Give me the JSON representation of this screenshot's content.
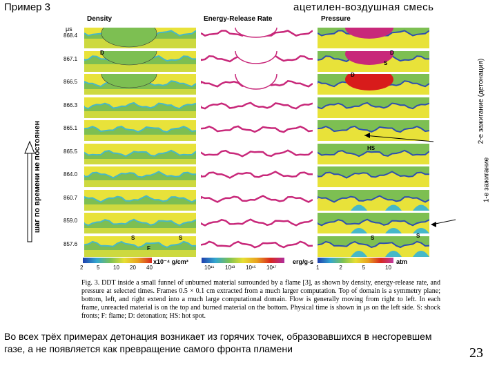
{
  "title_left": "Пример 3",
  "title_right": "ацетилен-воздушная смесь",
  "panels": {
    "density": "Density",
    "energy": "Energy-Release Rate",
    "pressure": "Pressure"
  },
  "time_unit": "μs",
  "times": [
    "868.4",
    "867.1",
    "866.5",
    "866.3",
    "865.1",
    "865.5",
    "864.0",
    "860.7",
    "859.0",
    "857.6"
  ],
  "vertical_left": "шаг по времени не постоянен",
  "label_ignition1": "1-е зажигание",
  "label_ignition2": "2-е зажигание (детонация)",
  "marks": {
    "D": "D",
    "S": "S",
    "F": "F",
    "HS": "HS"
  },
  "colorbars": {
    "density": {
      "ticks": [
        "2",
        "5",
        "10",
        "20",
        "40"
      ],
      "unit": "x10⁻⁴ g/cm³"
    },
    "energy": {
      "ticks": [
        "10¹¹",
        "10¹³",
        "10¹⁵",
        "10¹⁷"
      ],
      "unit": "erg/g-s"
    },
    "pressure": {
      "ticks": [
        "1",
        "2",
        "5",
        "10"
      ],
      "unit": "atm"
    }
  },
  "caption": "Fig. 3. DDT inside a small funnel of unburned material surrounded by a flame [3], as shown by density, energy-release rate, and pressure at selected times. Frames 0.5 × 0.1 cm extracted from a much larger computation. Top of domain is a symmetry plane; bottom, left, and right extend into a much large computational domain. Flow is generally moving from right to left. In each frame, unreacted material is on the top and burned material on the bottom. Physical time is shown in μs on the left side. S: shock fronts; F: flame; D: detonation; HS: hot spot.",
  "bottom_text": "Во всех трёх примерах детонация возникает из горячих точек, образовавшихся в несгоревшем газе, а не появляется как превращение самого фронта пламени",
  "page_number": "23",
  "colors": {
    "yellow": "#e8e23a",
    "green": "#7dbf52",
    "cyan": "#46b8c8",
    "blue": "#2d4fb0",
    "magenta": "#c8287a",
    "red": "#d81b1b"
  }
}
